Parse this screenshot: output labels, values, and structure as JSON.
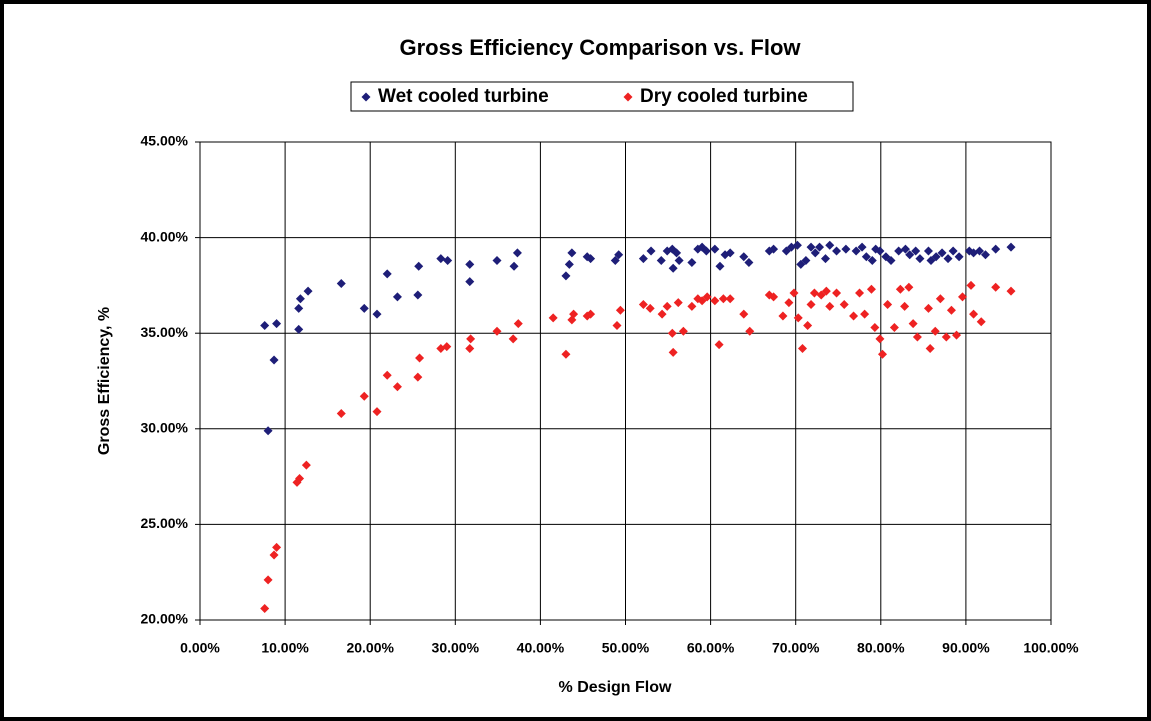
{
  "chart_data": {
    "type": "scatter",
    "title": "Gross Efficiency Comparison vs. Flow",
    "x_label": "% Design Flow",
    "y_label": "Gross Efficiency, %",
    "xlim": [
      0,
      100
    ],
    "ylim": [
      20,
      45
    ],
    "xticks": [
      {
        "value": 0,
        "label": "0.00%"
      },
      {
        "value": 10,
        "label": "10.00%"
      },
      {
        "value": 20,
        "label": "20.00%"
      },
      {
        "value": 30,
        "label": "30.00%"
      },
      {
        "value": 40,
        "label": "40.00%"
      },
      {
        "value": 50,
        "label": "50.00%"
      },
      {
        "value": 60,
        "label": "60.00%"
      },
      {
        "value": 70,
        "label": "70.00%"
      },
      {
        "value": 80,
        "label": "80.00%"
      },
      {
        "value": 90,
        "label": "90.00%"
      },
      {
        "value": 100,
        "label": "100.00%"
      }
    ],
    "yticks": [
      {
        "value": 20,
        "label": "20.00%"
      },
      {
        "value": 25,
        "label": "25.00%"
      },
      {
        "value": 30,
        "label": "30.00%"
      },
      {
        "value": 35,
        "label": "35.00%"
      },
      {
        "value": 40,
        "label": "40.00%"
      },
      {
        "value": 45,
        "label": "45.00%"
      }
    ],
    "grid": true,
    "legend": "top",
    "series": [
      {
        "name": "Wet cooled turbine",
        "color": "#1e1e78",
        "x": [
          7.6,
          9.0,
          8.7,
          8.0,
          11.6,
          11.8,
          11.6,
          12.7,
          16.6,
          19.3,
          20.8,
          22.0,
          23.2,
          25.6,
          25.7,
          28.3,
          29.1,
          31.7,
          31.7,
          34.9,
          36.9,
          37.3,
          43.0,
          43.4,
          43.7,
          45.5,
          45.9,
          48.8,
          49.2,
          52.1,
          53.0,
          54.2,
          54.9,
          55.6,
          55.5,
          56.3,
          56.0,
          57.8,
          58.5,
          59.0,
          59.5,
          60.5,
          61.1,
          61.7,
          62.3,
          63.9,
          64.5,
          66.9,
          67.4,
          68.9,
          69.5,
          70.2,
          70.6,
          71.2,
          71.8,
          72.3,
          72.8,
          73.5,
          74.0,
          74.8,
          75.9,
          77.1,
          77.8,
          78.3,
          79.0,
          79.4,
          79.9,
          80.6,
          81.2,
          82.1,
          82.9,
          83.4,
          84.1,
          84.6,
          85.6,
          85.9,
          86.5,
          87.2,
          87.9,
          88.5,
          89.2,
          90.4,
          90.9,
          91.6,
          92.3,
          93.5,
          95.3
        ],
        "values": [
          35.4,
          35.5,
          33.6,
          29.9,
          36.3,
          36.8,
          35.2,
          37.2,
          37.6,
          36.3,
          36.0,
          38.1,
          36.9,
          37.0,
          38.5,
          38.9,
          38.8,
          38.6,
          37.7,
          38.8,
          38.5,
          39.2,
          38.0,
          38.6,
          39.2,
          39.0,
          38.9,
          38.8,
          39.1,
          38.9,
          39.3,
          38.8,
          39.3,
          38.4,
          39.4,
          38.8,
          39.2,
          38.7,
          39.4,
          39.5,
          39.3,
          39.4,
          38.5,
          39.1,
          39.2,
          39.0,
          38.7,
          39.3,
          39.4,
          39.3,
          39.5,
          39.6,
          38.6,
          38.8,
          39.5,
          39.2,
          39.5,
          38.9,
          39.6,
          39.3,
          39.4,
          39.3,
          39.5,
          39.0,
          38.8,
          39.4,
          39.3,
          39.0,
          38.8,
          39.3,
          39.4,
          39.1,
          39.3,
          38.9,
          39.3,
          38.8,
          39.0,
          39.2,
          38.9,
          39.3,
          39.0,
          39.3,
          39.2,
          39.3,
          39.1,
          39.4,
          39.5
        ]
      },
      {
        "name": "Dry cooled turbine",
        "color": "#ee2222",
        "x": [
          7.6,
          8.0,
          8.7,
          9.0,
          11.4,
          11.7,
          12.5,
          16.6,
          19.3,
          20.8,
          22.0,
          23.2,
          25.6,
          25.8,
          28.3,
          29.0,
          31.7,
          31.8,
          34.9,
          36.8,
          37.4,
          41.5,
          43.0,
          43.7,
          43.9,
          45.5,
          45.9,
          49.0,
          49.4,
          52.1,
          52.9,
          54.3,
          54.9,
          55.6,
          55.5,
          56.2,
          56.8,
          57.8,
          58.5,
          59.0,
          59.6,
          60.5,
          61.0,
          61.5,
          62.3,
          63.9,
          64.6,
          66.9,
          67.4,
          68.5,
          69.2,
          69.8,
          70.3,
          70.8,
          71.4,
          71.8,
          72.2,
          73.0,
          73.6,
          74.0,
          74.8,
          75.7,
          76.8,
          77.5,
          78.1,
          78.9,
          79.3,
          79.9,
          80.2,
          80.8,
          81.6,
          82.3,
          82.8,
          83.3,
          83.8,
          84.3,
          85.6,
          85.8,
          86.4,
          87.0,
          87.7,
          88.3,
          88.9,
          89.6,
          90.6,
          90.9,
          91.8,
          93.5,
          95.3
        ],
        "values": [
          20.6,
          22.1,
          23.4,
          23.8,
          27.2,
          27.4,
          28.1,
          30.8,
          31.7,
          30.9,
          32.8,
          32.2,
          32.7,
          33.7,
          34.2,
          34.3,
          34.2,
          34.7,
          35.1,
          34.7,
          35.5,
          35.8,
          33.9,
          35.7,
          36.0,
          35.9,
          36.0,
          35.4,
          36.2,
          36.5,
          36.3,
          36.0,
          36.4,
          34.0,
          35.0,
          36.6,
          35.1,
          36.4,
          36.8,
          36.7,
          36.9,
          36.7,
          34.4,
          36.8,
          36.8,
          36.0,
          35.1,
          37.0,
          36.9,
          35.9,
          36.6,
          37.1,
          35.8,
          34.2,
          35.4,
          36.5,
          37.1,
          37.0,
          37.2,
          36.4,
          37.1,
          36.5,
          35.9,
          37.1,
          36.0,
          37.3,
          35.3,
          34.7,
          33.9,
          36.5,
          35.3,
          37.3,
          36.4,
          37.4,
          35.5,
          34.8,
          36.3,
          34.2,
          35.1,
          36.8,
          34.8,
          36.2,
          34.9,
          36.9,
          37.5,
          36.0,
          35.6,
          37.4,
          37.2
        ]
      }
    ]
  }
}
